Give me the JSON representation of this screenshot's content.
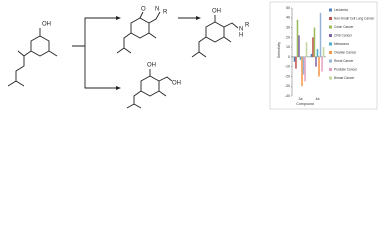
{
  "scheme": {
    "labels": [
      "OH",
      "O",
      "N",
      "R",
      "OH",
      "N",
      "H",
      "R",
      "OH",
      "OH"
    ]
  },
  "chart_data": {
    "type": "bar",
    "xlabel": "Compound",
    "ylabel": "Selectivity",
    "categories": [
      "3a",
      "4a"
    ],
    "ylim": [
      -40,
      50
    ],
    "yticks": [
      -40,
      -30,
      -20,
      -10,
      0,
      10,
      20,
      30,
      40,
      50
    ],
    "grid": false,
    "legend": "right",
    "series": [
      {
        "name": "Leukemia",
        "color": "#4f81bd",
        "values": [
          -5,
          3
        ]
      },
      {
        "name": "Non-Small Cell Lung Cancer",
        "color": "#c0504d",
        "values": [
          -12,
          20
        ]
      },
      {
        "name": "Colon Cancer",
        "color": "#9bbb59",
        "values": [
          38,
          30
        ]
      },
      {
        "name": "CNS Cancer",
        "color": "#8064a2",
        "values": [
          22,
          -10
        ]
      },
      {
        "name": "Melanoma",
        "color": "#4bacc6",
        "values": [
          -3,
          8
        ]
      },
      {
        "name": "Ovarian Cancer",
        "color": "#f79646",
        "values": [
          -30,
          -20
        ]
      },
      {
        "name": "Renal Cancer",
        "color": "#95b3d7",
        "values": [
          -18,
          45
        ]
      },
      {
        "name": "Prostate Cancer",
        "color": "#e6a0c4",
        "values": [
          -25,
          -15
        ]
      },
      {
        "name": "Breast Cancer",
        "color": "#c3d69b",
        "values": [
          15,
          10
        ]
      }
    ]
  }
}
